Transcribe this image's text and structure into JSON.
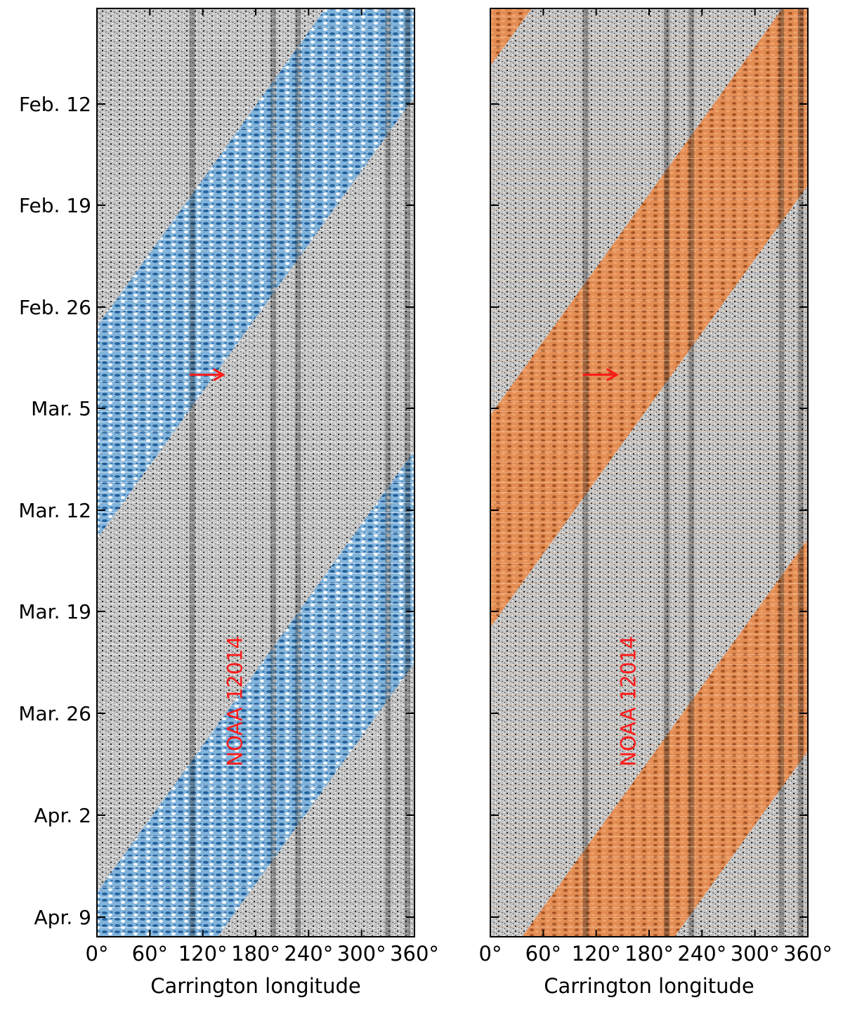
{
  "chart_data": [
    {
      "type": "heatmap",
      "panel": "left",
      "xlabel": "Carrington longitude",
      "ylabel": "",
      "title": "",
      "xlim": [
        0,
        360
      ],
      "xticks": [
        "0°",
        "60°",
        "120°",
        "180°",
        "240°",
        "300°",
        "360°"
      ],
      "yticks": [
        "Feb. 12",
        "Feb. 19",
        "Feb. 26",
        "Mar. 5",
        "Mar. 12",
        "Mar. 19",
        "Mar. 26",
        "Apr. 2",
        "Apr. 9"
      ],
      "overlay_color": "#1a5f9e",
      "annotations": [
        {
          "text": "NOAA 12014",
          "x_lon": 150,
          "date": "Mar. 23",
          "color": "#ff1a1a",
          "rotation": -90
        },
        {
          "text": "→",
          "x_lon": 140,
          "date": "Mar. 4",
          "color": "#ff1a1a",
          "kind": "arrow"
        }
      ]
    },
    {
      "type": "heatmap",
      "panel": "right",
      "xlabel": "Carrington longitude",
      "ylabel": "",
      "title": "",
      "xlim": [
        0,
        360
      ],
      "xticks": [
        "0°",
        "60°",
        "120°",
        "180°",
        "240°",
        "300°",
        "360°"
      ],
      "yticks": [],
      "overlay_color": "#e07a3c",
      "annotations": [
        {
          "text": "NOAA 12014",
          "x_lon": 150,
          "date": "Mar. 23",
          "color": "#ff1a1a",
          "rotation": -90
        },
        {
          "text": "→",
          "x_lon": 140,
          "date": "Mar. 4",
          "color": "#ff1a1a",
          "kind": "arrow"
        }
      ]
    }
  ],
  "colors": {
    "magnetogram_gray": "#b8b8b8",
    "left_overlay": "#1a5f9e",
    "right_overlay": "#e07a3c",
    "annotation": "#ff1a1a"
  }
}
